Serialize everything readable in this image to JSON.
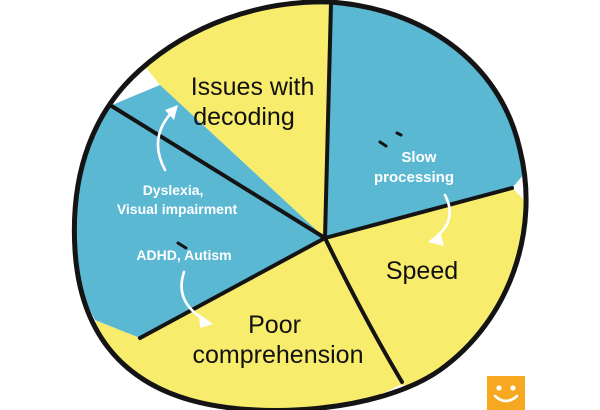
{
  "segments": {
    "issues_with_decoding": [
      "Issues with",
      "decoding"
    ],
    "slow_processing": [
      "Slow",
      "processing"
    ],
    "speed": "Speed",
    "poor_comprehension": [
      "Poor",
      "comprehension"
    ]
  },
  "causes": {
    "dyslexia": [
      "Dyslexia,",
      "Visual impairment"
    ],
    "adhd": "ADHD, Autism"
  },
  "colors": {
    "yellow": "#f8ec6c",
    "blue": "#5bb8d3",
    "outline": "#141414",
    "logo": "#f6a821"
  },
  "icons": {
    "logo": "smiley-logo-icon"
  }
}
